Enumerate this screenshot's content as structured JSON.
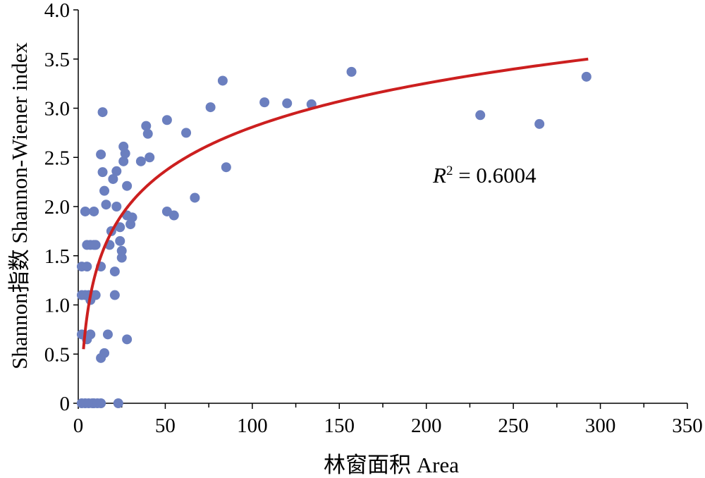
{
  "colors": {
    "points": "#6b7fbf",
    "fit_curve": "#cc1f1f",
    "axes": "#000000"
  },
  "chart_data": {
    "type": "scatter",
    "title": "",
    "xlabel": "林窗面积 Area",
    "ylabel": "Shannon指数 Shannon-Wiener index",
    "xlim": [
      0,
      350
    ],
    "ylim": [
      0,
      4.0
    ],
    "x_ticks": [
      "0",
      "50",
      "100",
      "150",
      "200",
      "250",
      "300",
      "350"
    ],
    "y_ticks": [
      "0",
      "0.5",
      "1.0",
      "1.5",
      "2.0",
      "2.5",
      "3.0",
      "3.5",
      "4.0"
    ],
    "grid": false,
    "legend": "none",
    "annotation": {
      "r2_label": "R",
      "r2_sup": "2",
      "r2_value": " = 0.6004"
    },
    "trendline": {
      "type": "logarithmic",
      "x_start": 3,
      "x_end": 293,
      "y_start": 0.55,
      "y_end": 3.5
    },
    "points": [
      {
        "x": 2,
        "y": 0
      },
      {
        "x": 4,
        "y": 0
      },
      {
        "x": 6,
        "y": 0
      },
      {
        "x": 8,
        "y": 0
      },
      {
        "x": 9,
        "y": 0
      },
      {
        "x": 11,
        "y": 0
      },
      {
        "x": 13,
        "y": 0
      },
      {
        "x": 23,
        "y": 0
      },
      {
        "x": 2,
        "y": 0.7
      },
      {
        "x": 5,
        "y": 0.65
      },
      {
        "x": 7,
        "y": 0.7
      },
      {
        "x": 13,
        "y": 0.46
      },
      {
        "x": 15,
        "y": 0.51
      },
      {
        "x": 17,
        "y": 0.7
      },
      {
        "x": 28,
        "y": 0.65
      },
      {
        "x": 2,
        "y": 1.1
      },
      {
        "x": 4,
        "y": 1.1
      },
      {
        "x": 6,
        "y": 1.1
      },
      {
        "x": 7,
        "y": 1.05
      },
      {
        "x": 8,
        "y": 1.1
      },
      {
        "x": 10,
        "y": 1.1
      },
      {
        "x": 21,
        "y": 1.1
      },
      {
        "x": 2,
        "y": 1.39
      },
      {
        "x": 5,
        "y": 1.39
      },
      {
        "x": 13,
        "y": 1.39
      },
      {
        "x": 21,
        "y": 1.34
      },
      {
        "x": 5,
        "y": 1.61
      },
      {
        "x": 7,
        "y": 1.61
      },
      {
        "x": 9,
        "y": 1.61
      },
      {
        "x": 10,
        "y": 1.61
      },
      {
        "x": 18,
        "y": 1.61
      },
      {
        "x": 24,
        "y": 1.65
      },
      {
        "x": 25,
        "y": 1.55
      },
      {
        "x": 25,
        "y": 1.48
      },
      {
        "x": 19,
        "y": 1.75
      },
      {
        "x": 24,
        "y": 1.79
      },
      {
        "x": 28,
        "y": 1.91
      },
      {
        "x": 30,
        "y": 1.82
      },
      {
        "x": 31,
        "y": 1.89
      },
      {
        "x": 4,
        "y": 1.95
      },
      {
        "x": 9,
        "y": 1.95
      },
      {
        "x": 16,
        "y": 2.02
      },
      {
        "x": 22,
        "y": 2.0
      },
      {
        "x": 15,
        "y": 2.16
      },
      {
        "x": 20,
        "y": 2.28
      },
      {
        "x": 28,
        "y": 2.21
      },
      {
        "x": 14,
        "y": 2.35
      },
      {
        "x": 22,
        "y": 2.36
      },
      {
        "x": 13,
        "y": 2.53
      },
      {
        "x": 26,
        "y": 2.46
      },
      {
        "x": 27,
        "y": 2.54
      },
      {
        "x": 26,
        "y": 2.61
      },
      {
        "x": 14,
        "y": 2.96
      },
      {
        "x": 36,
        "y": 2.46
      },
      {
        "x": 41,
        "y": 2.5
      },
      {
        "x": 39,
        "y": 2.82
      },
      {
        "x": 40,
        "y": 2.74
      },
      {
        "x": 51,
        "y": 2.88
      },
      {
        "x": 51,
        "y": 1.95
      },
      {
        "x": 55,
        "y": 1.91
      },
      {
        "x": 62,
        "y": 2.75
      },
      {
        "x": 67,
        "y": 2.09
      },
      {
        "x": 76,
        "y": 3.01
      },
      {
        "x": 83,
        "y": 3.28
      },
      {
        "x": 85,
        "y": 2.4
      },
      {
        "x": 107,
        "y": 3.06
      },
      {
        "x": 120,
        "y": 3.05
      },
      {
        "x": 134,
        "y": 3.04
      },
      {
        "x": 157,
        "y": 3.37
      },
      {
        "x": 231,
        "y": 2.93
      },
      {
        "x": 265,
        "y": 2.84
      },
      {
        "x": 292,
        "y": 3.32
      }
    ]
  }
}
